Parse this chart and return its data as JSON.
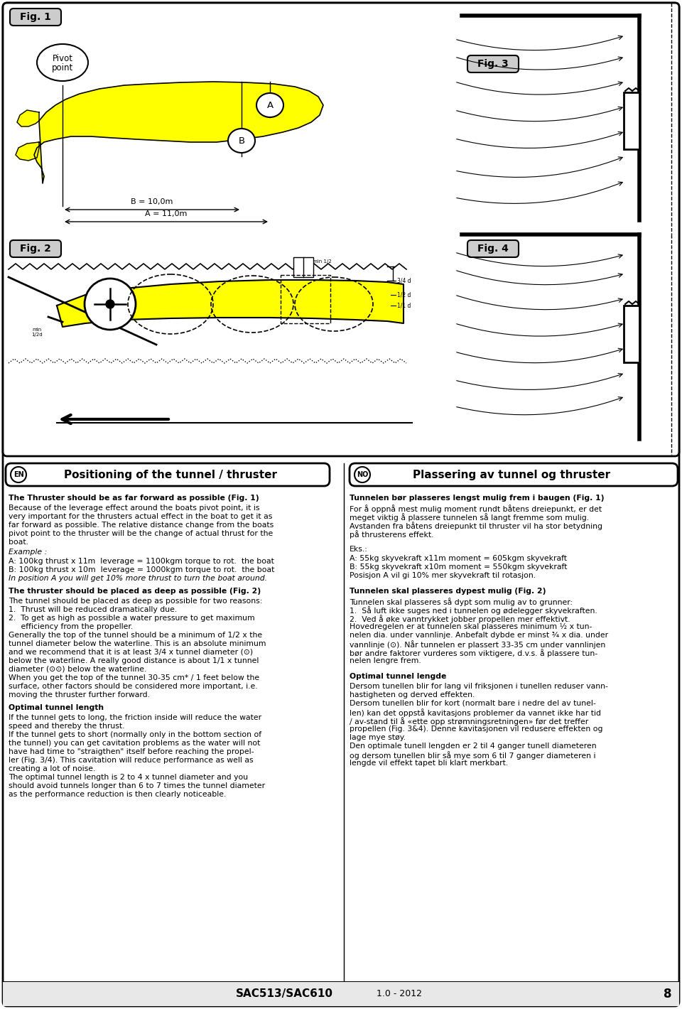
{
  "bg_color": "#ffffff",
  "yellow": "#ffff00",
  "fig1_label": "Fig. 1",
  "fig2_label": "Fig. 2",
  "fig3_label": "Fig. 3",
  "fig4_label": "Fig. 4",
  "title_en": "Positioning of the tunnel / thruster",
  "title_no": "Plassering av tunnel og thruster",
  "footer_doc": "SAC513/SAC610",
  "footer_ver": "1.0 - 2012",
  "footer_page": "8"
}
